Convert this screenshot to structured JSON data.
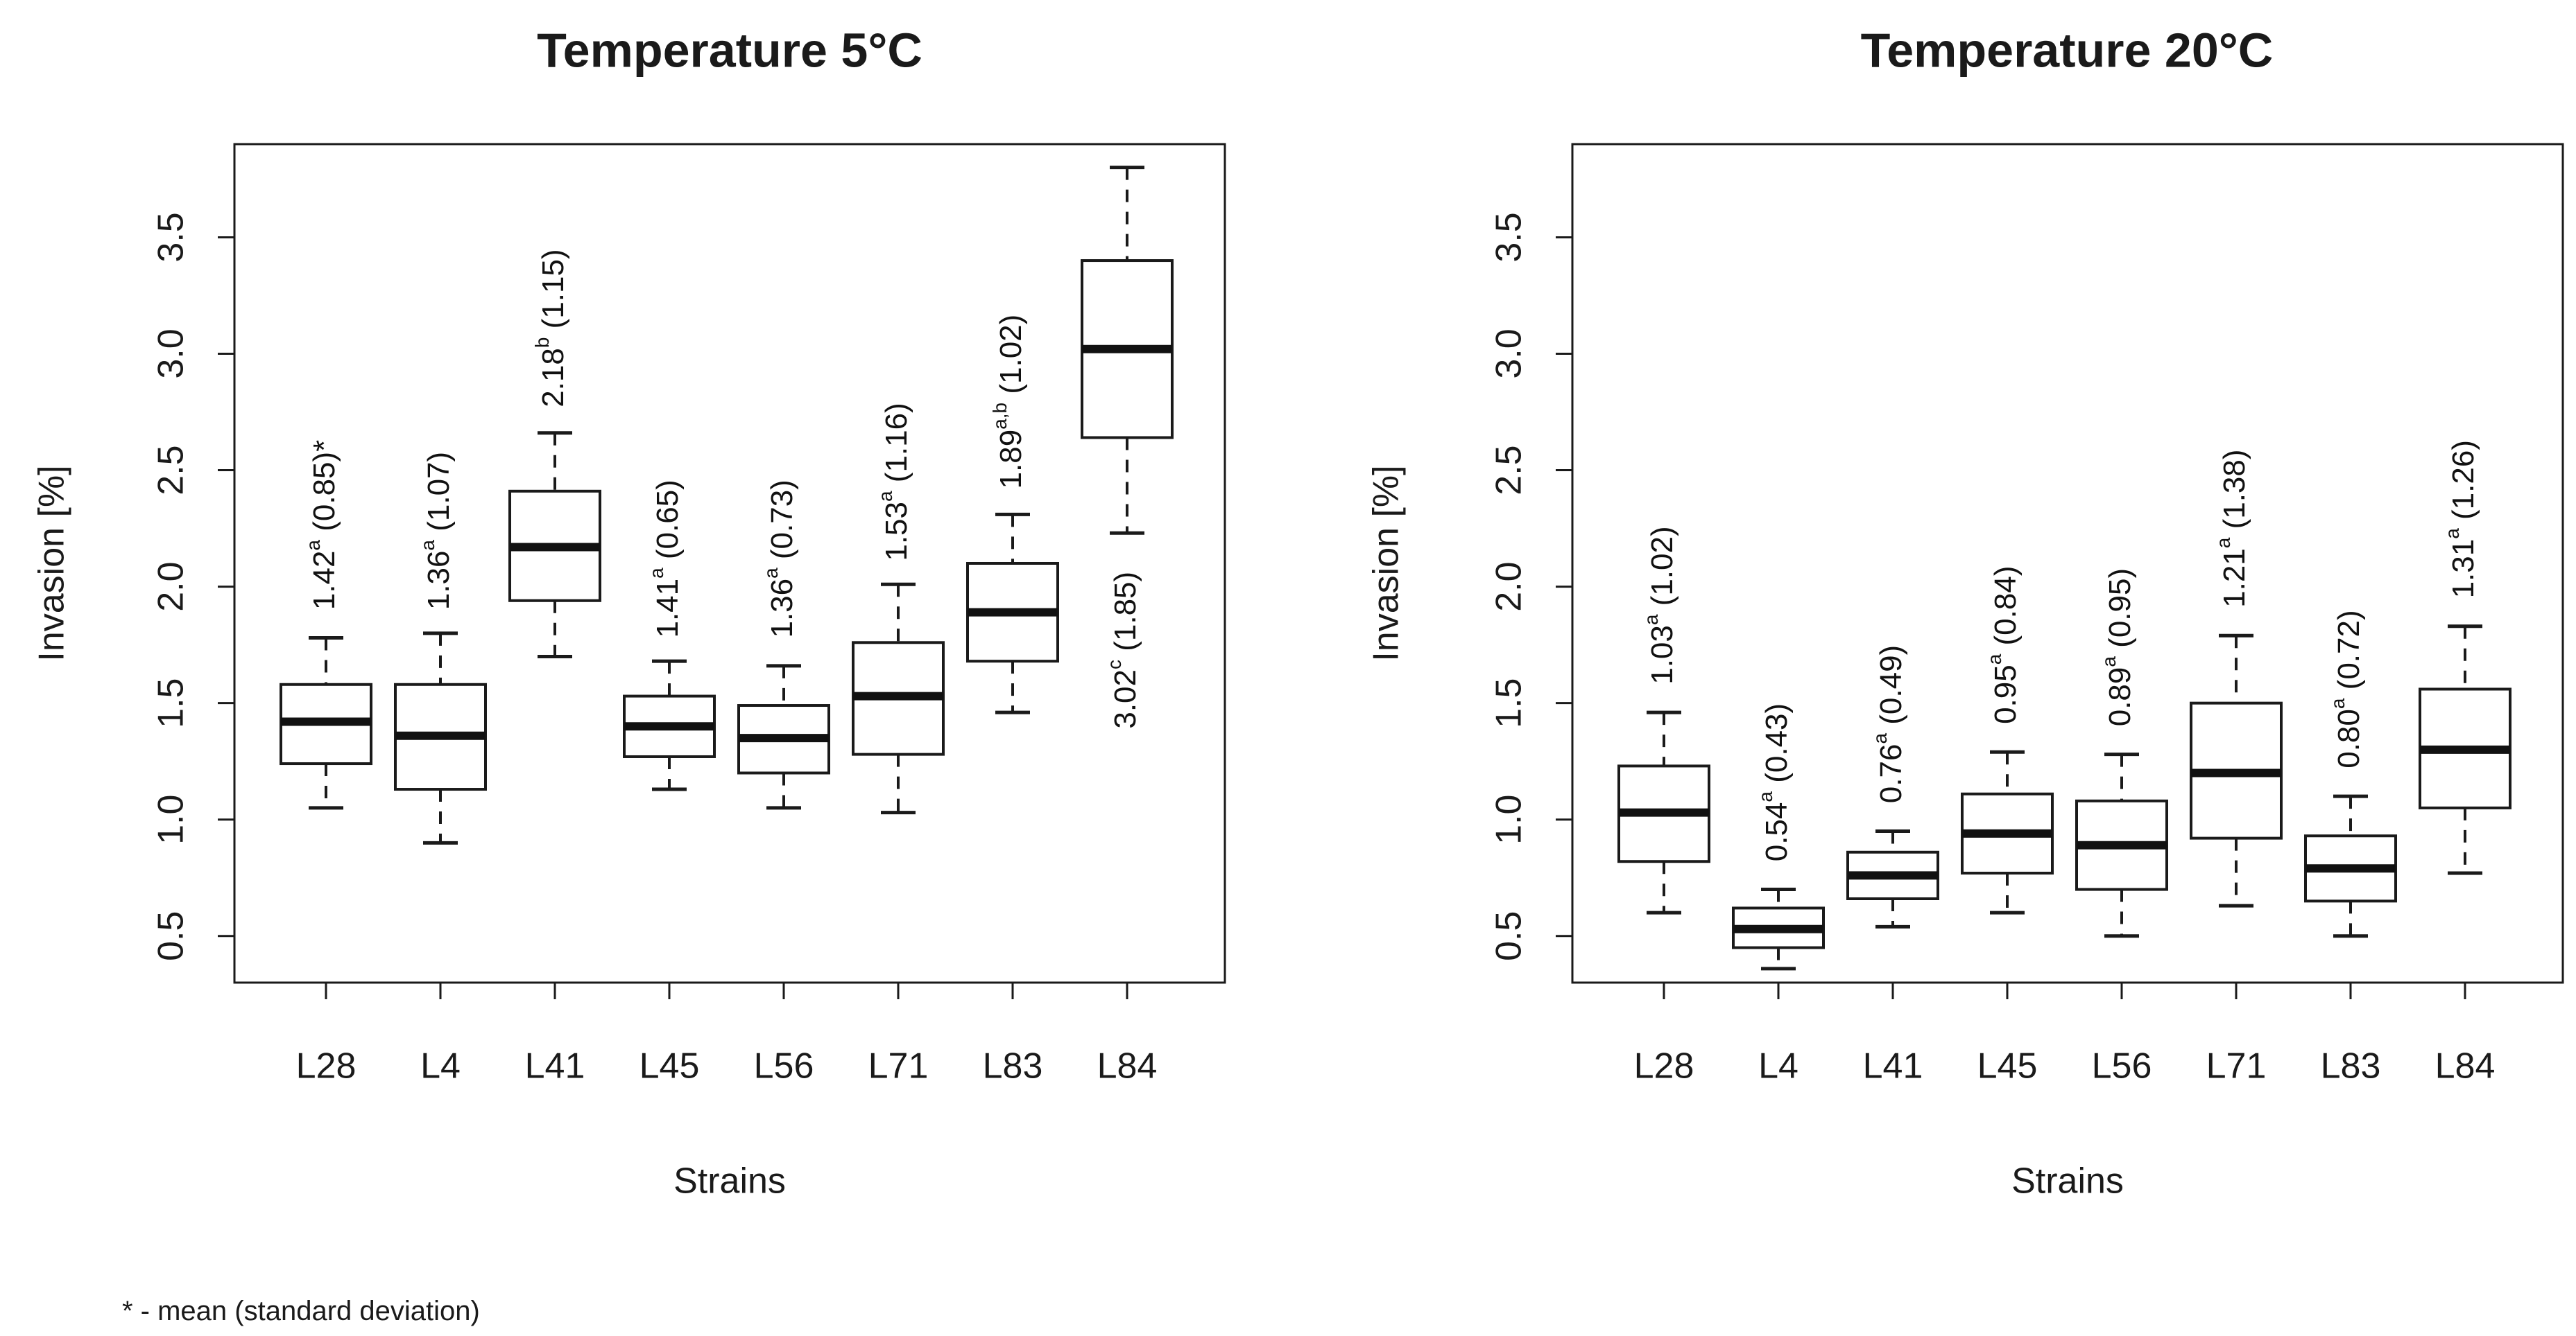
{
  "footnote": "* - mean (standard deviation)",
  "chart_data": [
    {
      "type": "boxplot",
      "title": "Temperature 5°C",
      "xlabel": "Strains",
      "ylabel": "Invasion [%]",
      "ylim": [
        0.3,
        3.9
      ],
      "yticks": [
        "0.5",
        "1.0",
        "1.5",
        "2.0",
        "2.5",
        "3.0",
        "3.5"
      ],
      "categories": [
        "L28",
        "L4",
        "L41",
        "L45",
        "L56",
        "L71",
        "L83",
        "L84"
      ],
      "boxes": [
        {
          "min": 1.05,
          "q1": 1.24,
          "median": 1.42,
          "q3": 1.58,
          "max": 1.78
        },
        {
          "min": 0.9,
          "q1": 1.13,
          "median": 1.36,
          "q3": 1.58,
          "max": 1.8
        },
        {
          "min": 1.7,
          "q1": 1.94,
          "median": 2.17,
          "q3": 2.41,
          "max": 2.66
        },
        {
          "min": 1.13,
          "q1": 1.27,
          "median": 1.4,
          "q3": 1.53,
          "max": 1.68
        },
        {
          "min": 1.05,
          "q1": 1.2,
          "median": 1.35,
          "q3": 1.49,
          "max": 1.66
        },
        {
          "min": 1.03,
          "q1": 1.28,
          "median": 1.53,
          "q3": 1.76,
          "max": 2.01
        },
        {
          "min": 1.46,
          "q1": 1.68,
          "median": 1.89,
          "q3": 2.1,
          "max": 2.31
        },
        {
          "min": 2.23,
          "q1": 2.64,
          "median": 3.02,
          "q3": 3.4,
          "max": 3.8
        }
      ],
      "annotations": [
        {
          "mean": "1.42",
          "sup": "a",
          "sd": "(0.85)",
          "note": "*",
          "anchor": 1.9
        },
        {
          "mean": "1.36",
          "sup": "a",
          "sd": "(1.07)",
          "note": "",
          "anchor": 1.9
        },
        {
          "mean": "2.18",
          "sup": "b",
          "sd": "(1.15)",
          "note": "",
          "anchor": 2.77
        },
        {
          "mean": "1.41",
          "sup": "a",
          "sd": "(0.65)",
          "note": "",
          "anchor": 1.78
        },
        {
          "mean": "1.36",
          "sup": "a",
          "sd": "(0.73)",
          "note": "",
          "anchor": 1.78
        },
        {
          "mean": "1.53",
          "sup": "a",
          "sd": "(1.16)",
          "note": "",
          "anchor": 2.11
        },
        {
          "mean": "1.89",
          "sup": "a,b",
          "sd": "(1.02)",
          "note": "",
          "anchor": 2.42
        },
        {
          "mean": "3.02",
          "sup": "c",
          "sd": "(1.85)",
          "note": "",
          "anchor": 1.39
        }
      ]
    },
    {
      "type": "boxplot",
      "title": "Temperature 20°C",
      "xlabel": "Strains",
      "ylabel": "Invasion [%]",
      "ylim": [
        0.3,
        3.9
      ],
      "yticks": [
        "0.5",
        "1.0",
        "1.5",
        "2.0",
        "2.5",
        "3.0",
        "3.5"
      ],
      "categories": [
        "L28",
        "L4",
        "L41",
        "L45",
        "L56",
        "L71",
        "L83",
        "L84"
      ],
      "boxes": [
        {
          "min": 0.6,
          "q1": 0.82,
          "median": 1.03,
          "q3": 1.23,
          "max": 1.46
        },
        {
          "min": 0.36,
          "q1": 0.45,
          "median": 0.53,
          "q3": 0.62,
          "max": 0.7
        },
        {
          "min": 0.54,
          "q1": 0.66,
          "median": 0.76,
          "q3": 0.86,
          "max": 0.95
        },
        {
          "min": 0.6,
          "q1": 0.77,
          "median": 0.94,
          "q3": 1.11,
          "max": 1.29
        },
        {
          "min": 0.5,
          "q1": 0.7,
          "median": 0.89,
          "q3": 1.08,
          "max": 1.28
        },
        {
          "min": 0.63,
          "q1": 0.92,
          "median": 1.2,
          "q3": 1.5,
          "max": 1.79
        },
        {
          "min": 0.5,
          "q1": 0.65,
          "median": 0.79,
          "q3": 0.93,
          "max": 1.1
        },
        {
          "min": 0.77,
          "q1": 1.05,
          "median": 1.3,
          "q3": 1.56,
          "max": 1.83
        }
      ],
      "annotations": [
        {
          "mean": "1.03",
          "sup": "a",
          "sd": "(1.02)",
          "note": "",
          "anchor": 1.58
        },
        {
          "mean": "0.54",
          "sup": "a",
          "sd": "(0.43)",
          "note": "",
          "anchor": 0.82
        },
        {
          "mean": "0.76",
          "sup": "a",
          "sd": "(0.49)",
          "note": "",
          "anchor": 1.07
        },
        {
          "mean": "0.95",
          "sup": "a",
          "sd": "(0.84)",
          "note": "",
          "anchor": 1.41
        },
        {
          "mean": "0.89",
          "sup": "a",
          "sd": "(0.95)",
          "note": "",
          "anchor": 1.4
        },
        {
          "mean": "1.21",
          "sup": "a",
          "sd": "(1.38)",
          "note": "",
          "anchor": 1.91
        },
        {
          "mean": "0.80",
          "sup": "a",
          "sd": "(0.72)",
          "note": "",
          "anchor": 1.22
        },
        {
          "mean": "1.31",
          "sup": "a",
          "sd": "(1.26)",
          "note": "",
          "anchor": 1.95
        }
      ]
    }
  ]
}
